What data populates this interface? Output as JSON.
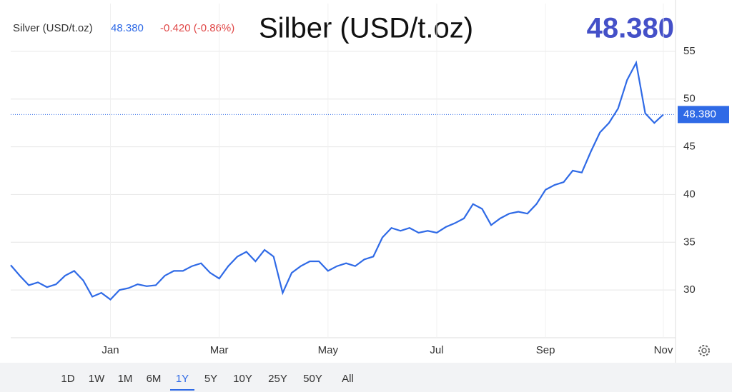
{
  "chart_data": {
    "type": "line",
    "title": "Silber (USD/t.oz)",
    "instrument": "Silver (USD/t.oz)",
    "last": {
      "value": 48.38,
      "label": "48.380"
    },
    "change": "-0.420 (-0.86%)",
    "categories": [
      null,
      null,
      null,
      null,
      null,
      null,
      null,
      null,
      null,
      null,
      null,
      "Jan",
      null,
      null,
      null,
      null,
      null,
      null,
      null,
      null,
      null,
      null,
      null,
      "Mar",
      null,
      null,
      null,
      null,
      null,
      null,
      null,
      null,
      null,
      null,
      null,
      "May",
      null,
      null,
      null,
      null,
      null,
      null,
      null,
      null,
      null,
      null,
      null,
      "Jul",
      null,
      null,
      null,
      null,
      null,
      null,
      null,
      null,
      null,
      null,
      null,
      "Sep",
      null,
      null,
      null,
      null,
      null,
      null,
      null,
      null,
      null,
      null,
      null,
      null,
      "Nov"
    ],
    "series": [
      {
        "name": "Silver",
        "color": "#2f6ae6",
        "values": [
          32.6,
          31.5,
          30.5,
          30.8,
          30.3,
          30.6,
          31.5,
          32.0,
          31.0,
          29.3,
          29.7,
          29.0,
          30.0,
          30.2,
          30.6,
          30.4,
          30.5,
          31.5,
          32.0,
          32.0,
          32.5,
          32.8,
          31.8,
          31.2,
          32.5,
          33.5,
          34.0,
          33.0,
          34.2,
          33.5,
          29.7,
          31.8,
          32.5,
          33.0,
          33.0,
          32.0,
          32.5,
          32.8,
          32.5,
          33.2,
          33.5,
          35.5,
          36.5,
          36.2,
          36.5,
          36.0,
          36.2,
          36.0,
          36.6,
          37.0,
          37.5,
          39.0,
          38.5,
          36.8,
          37.5,
          38.0,
          38.2,
          38.0,
          39.0,
          40.5,
          41.0,
          41.3,
          42.5,
          42.3,
          44.5,
          46.5,
          47.5,
          49.0,
          52.0,
          53.8,
          48.5,
          47.5,
          48.38
        ]
      }
    ],
    "ylim": [
      25,
      60
    ],
    "yticks": [
      30,
      35,
      40,
      45,
      50,
      55
    ],
    "grid": true
  },
  "range_buttons": [
    "1D",
    "1W",
    "1M",
    "6M",
    "1Y",
    "5Y",
    "10Y",
    "25Y",
    "50Y",
    "All"
  ],
  "active_range": "1Y"
}
